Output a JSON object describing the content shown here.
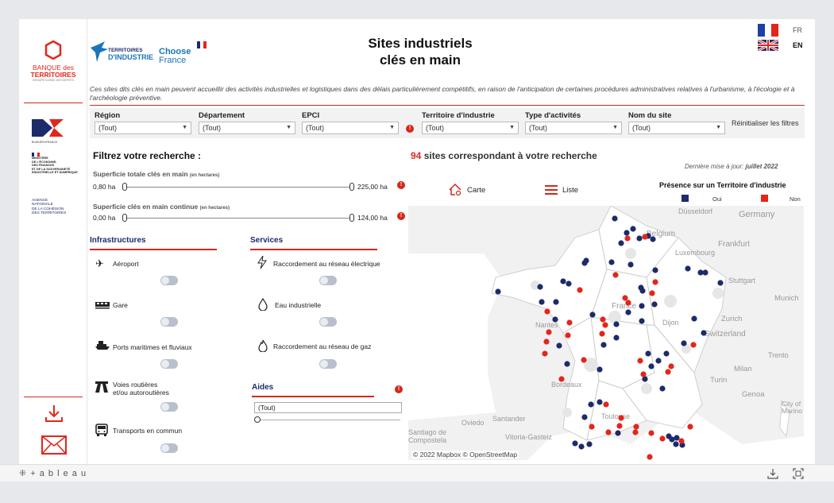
{
  "header": {
    "title_line1": "Sites industriels",
    "title_line2": "clés en main",
    "description": "Ces sites dits clés en main peuvent accueillir des activités industrielles et logistiques dans des délais particulièrement compétitifs, en raison de l'anticipation de certaines procédures administratives relatives à l'urbanisme, à l'écologie et à l'archéologie préventive."
  },
  "logos": {
    "banque_line1": "BANQUE des",
    "banque_line2": "TERRITOIRES",
    "banque_line3": "GROUPE CAISSE DES DÉPÔTS",
    "territoires_line1": "TERRITOIRES",
    "territoires_line2": "D'INDUSTRIE",
    "choose_line1": "Choose",
    "choose_line2": "France",
    "business_france": "BUSINESSFRANCE",
    "ministere": "MINISTÈRE\nDE L'ÉCONOMIE,\nDES FINANCES\nET DE LA SOUVERAINETÉ\nINDUSTRIELLE ET NUMÉRIQUE",
    "agence": "AGENCE\nNATIONALE\nDE LA COHÉSION\nDES TERRITOIRES"
  },
  "lang": {
    "fr": "FR",
    "en": "EN"
  },
  "filters": {
    "region": {
      "label": "Région",
      "value": "(Tout)"
    },
    "departement": {
      "label": "Département",
      "value": "(Tout)"
    },
    "epci": {
      "label": "EPCI",
      "value": "(Tout)"
    },
    "territoire": {
      "label": "Territoire d'industrie",
      "value": "(Tout)"
    },
    "type": {
      "label": "Type d'activités",
      "value": "(Tout)"
    },
    "site": {
      "label": "Nom du site",
      "value": "(Tout)"
    },
    "reset": "Réinitialiser les filtres"
  },
  "search": {
    "heading": "Filtrez votre recherche :",
    "sup_total_label": "Superficie totale clés en main",
    "sup_total_unit": "(en hectares)",
    "sup_total_min": "0,80 ha",
    "sup_total_max": "225,00 ha",
    "sup_cont_label": "Superficie clés en main continue",
    "sup_cont_unit": "(en hectares)",
    "sup_cont_min": "0,00 ha",
    "sup_cont_max": "124,00 ha"
  },
  "infrastructures": {
    "heading": "Infrastructures",
    "items": [
      "Aéroport",
      "Gare",
      "Ports maritimes et fluviaux",
      "Voies routières",
      "et/ou autoroutières",
      "Transports en commun"
    ]
  },
  "services": {
    "heading": "Services",
    "items": [
      "Raccordement au réseau électrique",
      "Eau industrielle",
      "Raccordement au réseau de gaz"
    ]
  },
  "aides": {
    "heading": "Aides",
    "value": "(Tout)"
  },
  "results": {
    "count": "94",
    "text": "sites correspondant à votre recherche",
    "updated_prefix": "Dernière mise à jour:",
    "updated_value": "juillet 2022"
  },
  "view": {
    "carte": "Carte",
    "liste": "Liste"
  },
  "legend": {
    "title": "Présence sur un Territoire d'industrie",
    "oui": "Oui",
    "non": "Non",
    "oui_color": "#1d2b6b",
    "non_color": "#e3261b"
  },
  "map": {
    "labels": [
      "Düsseldorf",
      "Germany",
      "Belgium",
      "Luxembourg",
      "Frankfurt",
      "Stuttgart",
      "Munich",
      "Zurich",
      "Switzerland",
      "Milan",
      "Turin",
      "Genoa",
      "Trento",
      "Dijon",
      "France",
      "Nantes",
      "Bordeaux",
      "Toulouse",
      "Oviedo",
      "Santander",
      "Vitoria-Gasteiz",
      "Santiago de Compostela",
      "City of Marino"
    ],
    "attribution": "© 2022 Mapbox  © OpenStreetMap"
  },
  "footer": {
    "tableau": "+ a b l e a u"
  }
}
